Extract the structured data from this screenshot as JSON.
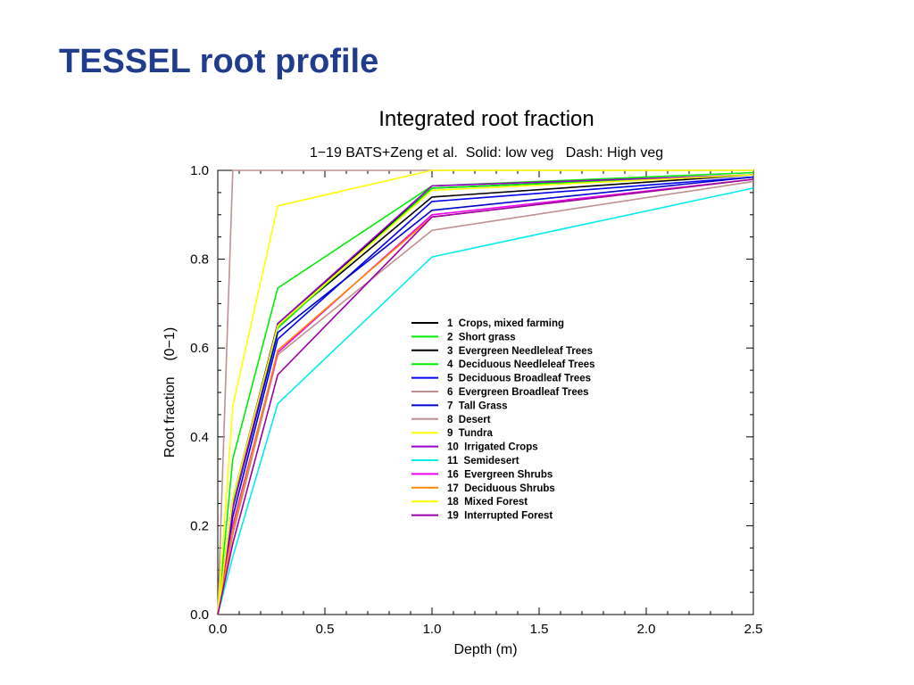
{
  "slide": {
    "title": "TESSEL root profile"
  },
  "chart_data": {
    "type": "line",
    "title": "Integrated root fraction",
    "subtitle": "1−19 BATS+Zeng et al.  Solid: low veg   Dash: High veg",
    "xlabel": "Depth (m)",
    "ylabel": "Root fraction    (0−1)",
    "xlim": [
      0,
      2.5
    ],
    "ylim": [
      0,
      1
    ],
    "xticks": [
      "0.0",
      "0.5",
      "1.0",
      "1.5",
      "2.0",
      "2.5"
    ],
    "yticks": [
      "0.0",
      "0.2",
      "0.4",
      "0.6",
      "0.8",
      "1.0"
    ],
    "grid": false,
    "legend_position": "center-right",
    "x": [
      0,
      0.07,
      0.28,
      1.0,
      2.5
    ],
    "series": [
      {
        "name": "1  Crops, mixed farming",
        "color": "#000000",
        "values": [
          0,
          0.24,
          0.65,
          0.94,
          0.99
        ]
      },
      {
        "name": "2  Short grass",
        "color": "#00ee00",
        "values": [
          0,
          0.35,
          0.735,
          0.965,
          0.995
        ]
      },
      {
        "name": "3  Evergreen Needleleaf Trees",
        "color": "#000000",
        "values": [
          0,
          0.26,
          0.655,
          0.96,
          0.99
        ]
      },
      {
        "name": "4  Deciduous Needleleaf Trees",
        "color": "#00ee00",
        "values": [
          0,
          0.25,
          0.645,
          0.96,
          0.99
        ]
      },
      {
        "name": "5  Deciduous Broadleaf Trees",
        "color": "#0000ee",
        "values": [
          0,
          0.22,
          0.62,
          0.93,
          0.985
        ]
      },
      {
        "name": "6  Evergreen Broadleaf Trees",
        "color": "#c09090",
        "values": [
          0,
          0.18,
          0.585,
          0.865,
          0.975
        ]
      },
      {
        "name": "7  Tall Grass",
        "color": "#0000cc",
        "values": [
          0,
          0.24,
          0.635,
          0.91,
          0.985
        ]
      },
      {
        "name": "8  Desert",
        "color": "#c09090",
        "values": [
          0,
          1.0,
          1.0,
          1.0,
          1.0
        ]
      },
      {
        "name": "9  Tundra",
        "color": "#ffff00",
        "values": [
          0,
          0.47,
          0.92,
          1.0,
          1.0
        ]
      },
      {
        "name": "10  Irrigated Crops",
        "color": "#9900cc",
        "values": [
          0,
          0.24,
          0.655,
          0.965,
          0.99
        ]
      },
      {
        "name": "11  Semidesert",
        "color": "#00eeee",
        "values": [
          0,
          0.13,
          0.475,
          0.805,
          0.96
        ]
      },
      {
        "name": "16  Evergreen Shrubs",
        "color": "#ee00ee",
        "values": [
          0,
          0.2,
          0.59,
          0.9,
          0.98
        ]
      },
      {
        "name": "17  Deciduous Shrubs",
        "color": "#ff8800",
        "values": [
          0,
          0.19,
          0.595,
          0.895,
          0.98
        ]
      },
      {
        "name": "18  Mixed Forest",
        "color": "#ffff00",
        "values": [
          0,
          0.26,
          0.65,
          0.955,
          0.99
        ]
      },
      {
        "name": "19  Interrupted Forest",
        "color": "#9900aa",
        "values": [
          0,
          0.16,
          0.54,
          0.895,
          0.98
        ]
      }
    ]
  }
}
